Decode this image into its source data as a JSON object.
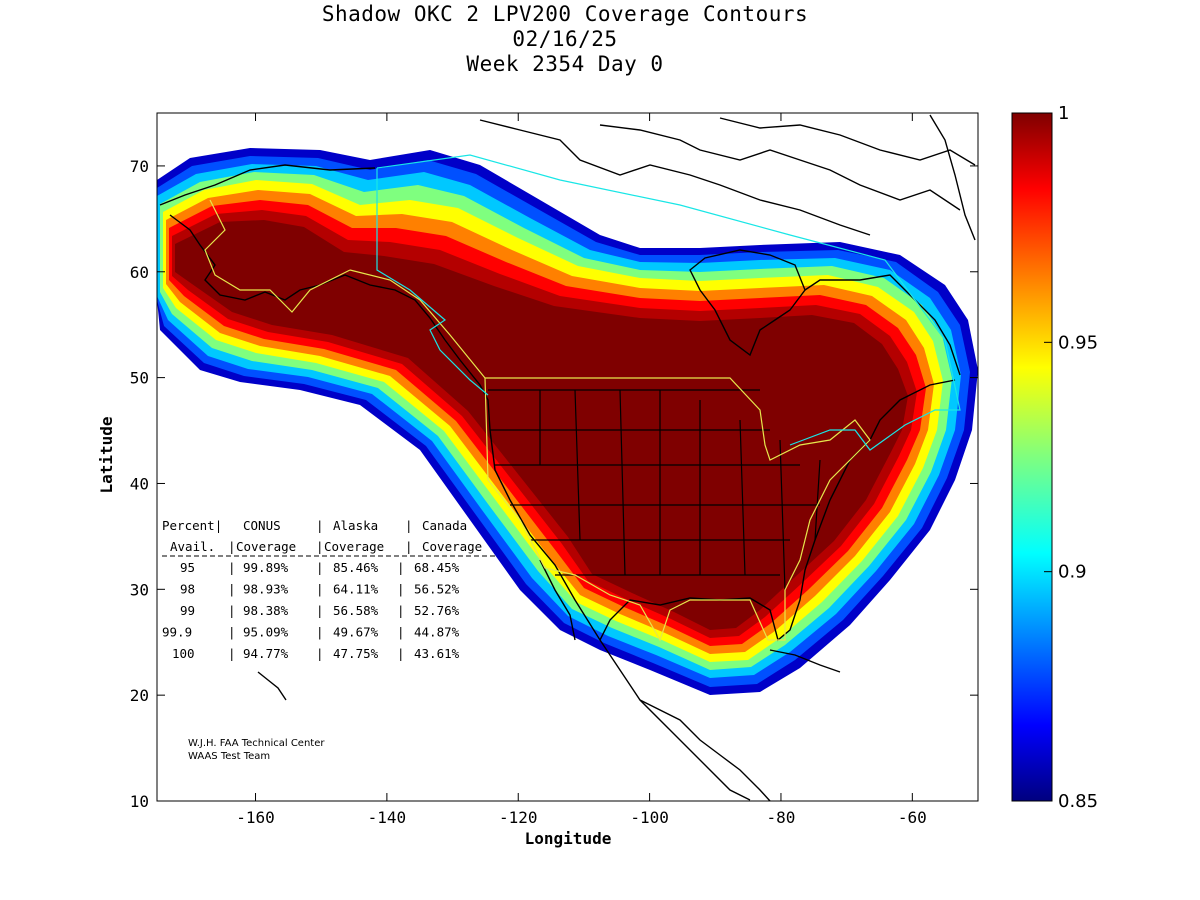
{
  "title": {
    "line1": "Shadow OKC 2 LPV200 Coverage Contours",
    "line2": "02/16/25",
    "line3": "Week 2354 Day 0"
  },
  "axes": {
    "xlabel": "Longitude",
    "ylabel": "Latitude",
    "xlim": [
      -175,
      -50
    ],
    "ylim": [
      10,
      75
    ],
    "xticks": [
      -160,
      -140,
      -120,
      -100,
      -80,
      -60
    ],
    "yticks": [
      10,
      20,
      30,
      40,
      50,
      60,
      70
    ]
  },
  "colorbar": {
    "min": 0.85,
    "max": 1,
    "ticks": [
      "1",
      "0.95",
      "0.9",
      "0.85"
    ],
    "colormap": "jet"
  },
  "table": {
    "header1": [
      "Percent",
      "CONUS",
      "Alaska",
      "Canada"
    ],
    "header2": [
      "Avail.",
      "Coverage",
      "Coverage",
      "Coverage"
    ],
    "rows": [
      [
        "95",
        "99.89%",
        "85.46%",
        "68.45%"
      ],
      [
        "98",
        "98.93%",
        "64.11%",
        "56.52%"
      ],
      [
        "99",
        "98.38%",
        "56.58%",
        "52.76%"
      ],
      [
        "99.9",
        "95.09%",
        "49.67%",
        "44.87%"
      ],
      [
        "100",
        "94.77%",
        "47.75%",
        "43.61%"
      ]
    ]
  },
  "credits": {
    "line1": "W.J.H. FAA Technical Center",
    "line2": "WAAS Test Team"
  },
  "colors": {
    "full_coverage": "#7f0000",
    "boundary_conus": "#e6e64c",
    "boundary_canada": "#19e6e6"
  }
}
